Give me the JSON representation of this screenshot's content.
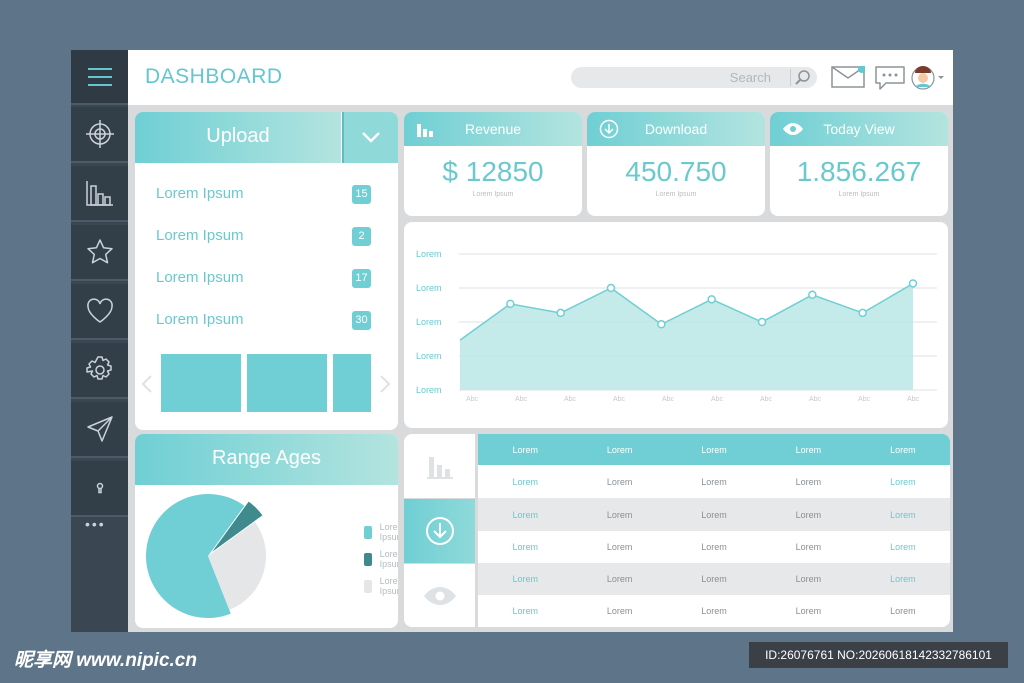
{
  "header": {
    "title": "DASHBOARD",
    "search_placeholder": "Search"
  },
  "sidebar": {
    "items": [
      "menu-icon",
      "target-icon",
      "bar-chart-icon",
      "star-icon",
      "heart-icon",
      "gear-icon",
      "send-icon",
      "lock-icon",
      "more-icon"
    ]
  },
  "upload": {
    "title": "Upload",
    "items": [
      {
        "label": "Lorem Ipsum",
        "count": "15"
      },
      {
        "label": "Lorem Ipsum",
        "count": "2"
      },
      {
        "label": "Lorem Ipsum",
        "count": "17"
      },
      {
        "label": "Lorem Ipsum",
        "count": "30"
      }
    ]
  },
  "stats": [
    {
      "title": "Revenue",
      "value": "$ 12850",
      "sub": "Lorem Ipsum",
      "icon": "bar-chart-icon"
    },
    {
      "title": "Download",
      "value": "450.750",
      "sub": "Lorem Ipsum",
      "icon": "download-icon"
    },
    {
      "title": "Today View",
      "value": "1.856.267",
      "sub": "Lorem Ipsum",
      "icon": "eye-icon"
    }
  ],
  "chart_data": {
    "type": "area",
    "y_tick_labels": [
      "Lorem",
      "Lorem",
      "Lorem",
      "Lorem",
      "Lorem"
    ],
    "categories": [
      "Abc",
      "Abc",
      "Abc",
      "Abc",
      "Abc",
      "Abc",
      "Abc",
      "Abc",
      "Abc",
      "Abc"
    ],
    "values": [
      22,
      38,
      34,
      45,
      29,
      40,
      30,
      42,
      34,
      47
    ],
    "ylim": [
      0,
      60
    ],
    "grid": true,
    "color": "#6fcfd4"
  },
  "range_ages": {
    "title": "Range Ages",
    "slices": [
      {
        "label": "Lorem Ipsum",
        "value": 66,
        "color": "#70cfd4"
      },
      {
        "label": "Lorem Ipsum",
        "value": 5,
        "color": "#3f8a8d"
      },
      {
        "label": "Lorem Ipsum",
        "value": 29,
        "color": "#e4e6e7"
      }
    ]
  },
  "table": {
    "header": [
      "Lorem",
      "Lorem",
      "Lorem",
      "Lorem",
      "Lorem"
    ],
    "rows": [
      [
        "Lorem",
        "Lorem",
        "Lorem",
        "Lorem",
        "Lorem"
      ],
      [
        "Lorem",
        "Lorem",
        "Lorem",
        "Lorem",
        "Lorem"
      ],
      [
        "Lorem",
        "Lorem",
        "Lorem",
        "Lorem",
        "Lorem"
      ],
      [
        "Lorem",
        "Lorem",
        "Lorem",
        "Lorem",
        "Lorem"
      ],
      [
        "Lorem",
        "Lorem",
        "Lorem",
        "Lorem",
        "Lorem"
      ]
    ]
  },
  "footer": {
    "site": "昵享网 www.nipic.cn",
    "id": "ID:26076761 NO:20260618142332786101"
  },
  "colors": {
    "accent": "#6fcfd4",
    "sidebar": "#3a4753",
    "background": "#5e7489"
  }
}
